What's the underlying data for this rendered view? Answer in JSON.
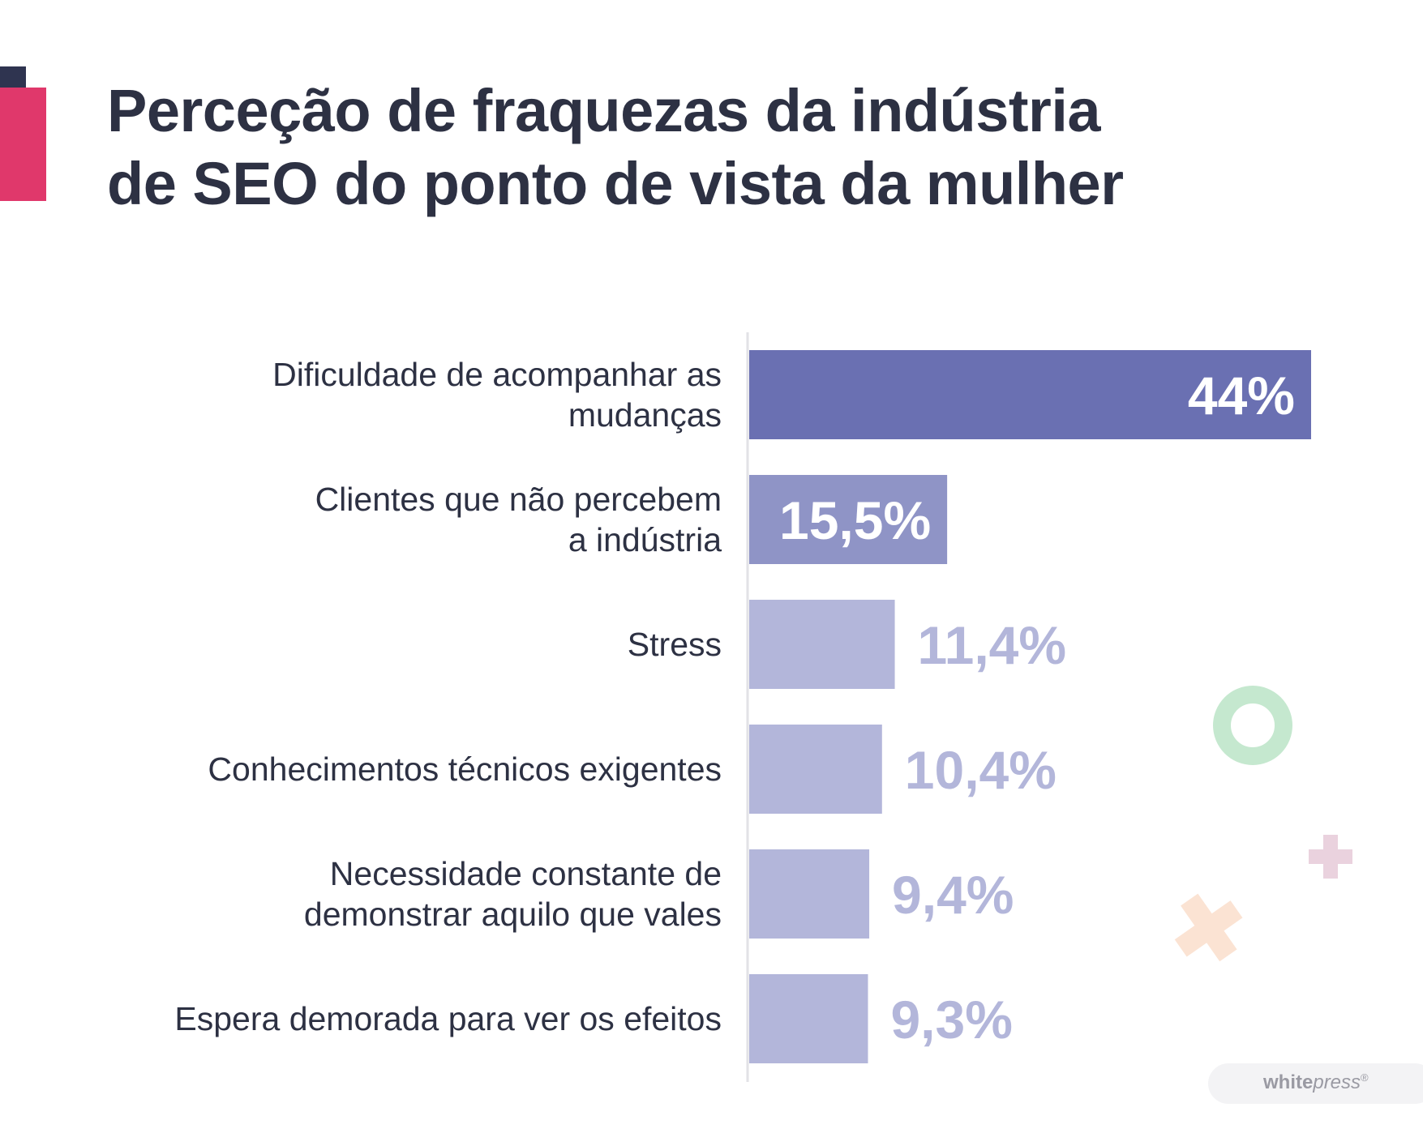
{
  "title_lines": [
    "Perceção de fraquezas da indústria",
    "de SEO do ponto de vista da mulher"
  ],
  "chart_data": {
    "type": "bar",
    "orientation": "horizontal",
    "title": "Perceção de fraquezas da indústria de SEO do ponto de vista da mulher",
    "categories": [
      [
        "Dificuldade de acompanhar as",
        "mudanças"
      ],
      [
        "Clientes que não percebem",
        "a indústria"
      ],
      [
        "Stress"
      ],
      [
        "Conhecimentos técnicos exigentes"
      ],
      [
        "Necessidade constante de",
        "demonstrar aquilo que vales"
      ],
      [
        "Espera demorada para ver os efeitos"
      ]
    ],
    "values": [
      44,
      15.5,
      11.4,
      10.4,
      9.4,
      9.3
    ],
    "value_labels": [
      "44%",
      "15,5%",
      "11,4%",
      "10,4%",
      "9,4%",
      "9,3%"
    ],
    "bar_colors": [
      "#6a70b2",
      "#8f94c6",
      "#b3b6da",
      "#b3b6da",
      "#b3b6da",
      "#b3b6da"
    ],
    "label_colors": [
      "#ffffff",
      "#ffffff",
      "#b3b6da",
      "#b3b6da",
      "#b3b6da",
      "#b3b6da"
    ],
    "xlim": [
      0,
      44
    ],
    "grid": false
  },
  "logo": {
    "bold": "white",
    "italic": "press",
    "mark": "®"
  },
  "colors": {
    "title": "#2d3143",
    "accent_pink": "#e0386b",
    "accent_dark": "#2f3450"
  }
}
